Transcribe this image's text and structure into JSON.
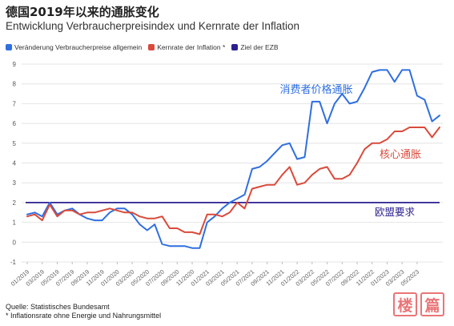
{
  "title": "德国2019年以来的通胀变化",
  "subtitle": "Entwicklung Verbraucherpreisindex und Kernrate der Inflation",
  "legend": [
    {
      "label": "Veränderung Verbraucherpreise allgemein",
      "color": "#2f6fe0"
    },
    {
      "label": "Kernrate der Inflation *",
      "color": "#d94a3b"
    },
    {
      "label": "Ziel der EZB",
      "color": "#2a1f8f"
    }
  ],
  "footer": {
    "source": "Quelle: Statistisches Bundesamt",
    "note": "* Inflationsrate ohne Energie und Nahrungsmittel"
  },
  "watermark": {
    "chars": [
      "楼",
      "篇"
    ],
    "color": "#e2474b"
  },
  "chart_data": {
    "type": "line",
    "ylim": [
      -1,
      9
    ],
    "yticks": [
      -1,
      0,
      1,
      2,
      3,
      4,
      5,
      6,
      7,
      8,
      9
    ],
    "grid": true,
    "x_tick_labels": [
      "01/2019",
      "03/2019",
      "05/2019",
      "07/2019",
      "09/2019",
      "11/2019",
      "01/2020",
      "03/2020",
      "05/2020",
      "07/2020",
      "09/2020",
      "11/2020",
      "01/2021",
      "03/2021",
      "05/2021",
      "07/2021",
      "09/2021",
      "11/2021",
      "01/2022",
      "03/2022",
      "05/2022",
      "07/2022",
      "09/2022",
      "11/2022",
      "01/2023",
      "03/2023",
      "05/2023"
    ],
    "x_start": "01/2019",
    "series": [
      {
        "name": "Veränderung Verbraucherpreise allgemein",
        "color": "#2f6fe0",
        "values": [
          1.4,
          1.5,
          1.3,
          2.0,
          1.4,
          1.6,
          1.7,
          1.4,
          1.2,
          1.1,
          1.1,
          1.5,
          1.7,
          1.7,
          1.4,
          0.9,
          0.6,
          0.9,
          -0.1,
          -0.2,
          -0.2,
          -0.2,
          -0.3,
          -0.3,
          1.0,
          1.3,
          1.7,
          2.0,
          2.2,
          2.4,
          3.7,
          3.8,
          4.1,
          4.5,
          4.9,
          5.0,
          4.2,
          4.3,
          7.1,
          7.1,
          6.0,
          7.0,
          7.5,
          7.0,
          7.1,
          7.8,
          8.6,
          8.7,
          8.7,
          8.1,
          8.7,
          8.7,
          7.4,
          7.2,
          6.1,
          6.4
        ],
        "label": "消费者价格通胀"
      },
      {
        "name": "Kernrate der Inflation *",
        "color": "#d94a3b",
        "values": [
          1.3,
          1.4,
          1.1,
          1.9,
          1.3,
          1.6,
          1.6,
          1.4,
          1.5,
          1.5,
          1.6,
          1.7,
          1.6,
          1.5,
          1.5,
          1.3,
          1.2,
          1.2,
          1.3,
          0.7,
          0.7,
          0.5,
          0.5,
          0.4,
          1.4,
          1.4,
          1.3,
          1.5,
          2.0,
          1.7,
          2.7,
          2.8,
          2.9,
          2.9,
          3.4,
          3.8,
          2.9,
          3.0,
          3.4,
          3.7,
          3.8,
          3.2,
          3.2,
          3.4,
          4.0,
          4.7,
          5.0,
          5.0,
          5.2,
          5.6,
          5.6,
          5.8,
          5.8,
          5.8,
          5.3,
          5.8
        ],
        "label": "核心通胀"
      }
    ],
    "reference_line": {
      "name": "Ziel der EZB",
      "value": 2,
      "color": "#2a1f8f",
      "label": "欧盟要求"
    }
  }
}
